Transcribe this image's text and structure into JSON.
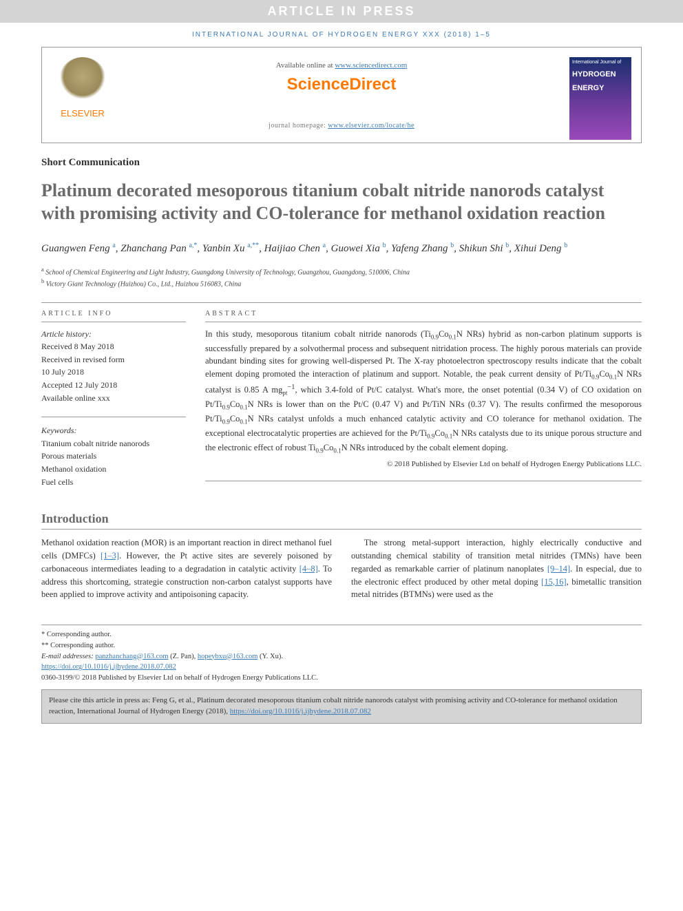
{
  "banner": {
    "text": "ARTICLE IN PRESS"
  },
  "journalLine": "INTERNATIONAL JOURNAL OF HYDROGEN ENERGY XXX (2018) 1–5",
  "header": {
    "elsevier": "ELSEVIER",
    "availText": "Available online at ",
    "availUrl": "www.sciencedirect.com",
    "brand": "ScienceDirect",
    "homepagePrefix": "journal homepage: ",
    "homepageUrl": "www.elsevier.com/locate/he",
    "cover": {
      "top": "International Journal of",
      "main1": "HYDROGEN",
      "main2": "ENERGY"
    }
  },
  "articleType": "Short Communication",
  "title": "Platinum decorated mesoporous titanium cobalt nitride nanorods catalyst with promising activity and CO-tolerance for methanol oxidation reaction",
  "authors": [
    {
      "name": "Guangwen Feng",
      "sup": "a"
    },
    {
      "name": "Zhanchang Pan",
      "sup": "a,*"
    },
    {
      "name": "Yanbin Xu",
      "sup": "a,**"
    },
    {
      "name": "Haijiao Chen",
      "sup": "a"
    },
    {
      "name": "Guowei Xia",
      "sup": "b"
    },
    {
      "name": "Yafeng Zhang",
      "sup": "b"
    },
    {
      "name": "Shikun Shi",
      "sup": "b"
    },
    {
      "name": "Xihui Deng",
      "sup": "b"
    }
  ],
  "affiliations": [
    {
      "sup": "a",
      "text": "School of Chemical Engineering and Light Industry, Guangdong University of Technology, Guangzhou, Guangdong, 510006, China"
    },
    {
      "sup": "b",
      "text": "Victory Giant Technology (Huizhou) Co., Ltd., Huizhou 516083, China"
    }
  ],
  "infoHead": "ARTICLE INFO",
  "history": {
    "label": "Article history:",
    "received": "Received 8 May 2018",
    "revised1": "Received in revised form",
    "revised2": "10 July 2018",
    "accepted": "Accepted 12 July 2018",
    "online": "Available online xxx"
  },
  "keywordsLabel": "Keywords:",
  "keywords": [
    "Titanium cobalt nitride nanorods",
    "Porous materials",
    "Methanol oxidation",
    "Fuel cells"
  ],
  "abstractHead": "ABSTRACT",
  "abstractText": "In this study, mesoporous titanium cobalt nitride nanorods (Ti0.9Co0.1N NRs) hybrid as non-carbon platinum supports is successfully prepared by a solvothermal process and subsequent nitridation process. The highly porous materials can provide abundant binding sites for growing well-dispersed Pt. The X-ray photoelectron spectroscopy results indicate that the cobalt element doping promoted the interaction of platinum and support. Notable, the peak current density of Pt/Ti0.9Co0.1N NRs catalyst is 0.85 A mgpt−1, which 3.4-fold of Pt/C catalyst. What's more, the onset potential (0.34 V) of CO oxidation on Pt/Ti0.9Co0.1N NRs is lower than on the Pt/C (0.47 V) and Pt/TiN NRs (0.37 V). The results confirmed the mesoporous Pt/Ti0.9Co0.1N NRs catalyst unfolds a much enhanced catalytic activity and CO tolerance for methanol oxidation. The exceptional electrocatalytic properties are achieved for the Pt/Ti0.9Co0.1N NRs catalysts due to its unique porous structure and the electronic effect of robust Ti0.9Co0.1N NRs introduced by the cobalt element doping.",
  "abstractCopyright": "© 2018 Published by Elsevier Ltd on behalf of Hydrogen Energy Publications LLC.",
  "intro": {
    "head": "Introduction",
    "p1a": "Methanol oxidation reaction (MOR) is an important reaction in direct methanol fuel cells (DMFCs) ",
    "p1ref1": "[1–3]",
    "p1b": ". However, the Pt active sites are severely poisoned by carbonaceous intermediates leading to a degradation in catalytic activity ",
    "p1ref2": "[4–8]",
    "p1c": ". To address this shortcoming, strategie construction non-",
    "p2a": "carbon catalyst supports have been applied to improve activity and antipoisoning capacity.",
    "p3a": "The strong metal-support interaction, highly electrically conductive and outstanding chemical stability of transition metal nitrides (TMNs) have been regarded as remarkable carrier of platinum nanoplates ",
    "p3ref1": "[9–14]",
    "p3b": ". In especial, due to the electronic effect produced by other metal doping ",
    "p3ref2": "[15,16]",
    "p3c": ", bimetallic transition metal nitrides (BTMNs) were used as the"
  },
  "footnotes": {
    "l1": "* Corresponding author.",
    "l2": "** Corresponding author.",
    "emailsLabel": "E-mail addresses: ",
    "email1": "panzhanchang@163.com",
    "email1name": " (Z. Pan), ",
    "email2": "hopeybxu@163.com",
    "email2name": " (Y. Xu).",
    "doi": "https://doi.org/10.1016/j.ijhydene.2018.07.082",
    "bottom": "0360-3199/© 2018 Published by Elsevier Ltd on behalf of Hydrogen Energy Publications LLC."
  },
  "citeBox": {
    "text": "Please cite this article in press as: Feng G, et al., Platinum decorated mesoporous titanium cobalt nitride nanorods catalyst with promising activity and CO-tolerance for methanol oxidation reaction, International Journal of Hydrogen Energy (2018), ",
    "doi": "https://doi.org/10.1016/j.ijhydene.2018.07.082"
  },
  "colors": {
    "link": "#3a7ab5",
    "orange": "#ff7800",
    "titleGray": "#6a6a6a",
    "bannerBg": "#d4d4d4"
  }
}
